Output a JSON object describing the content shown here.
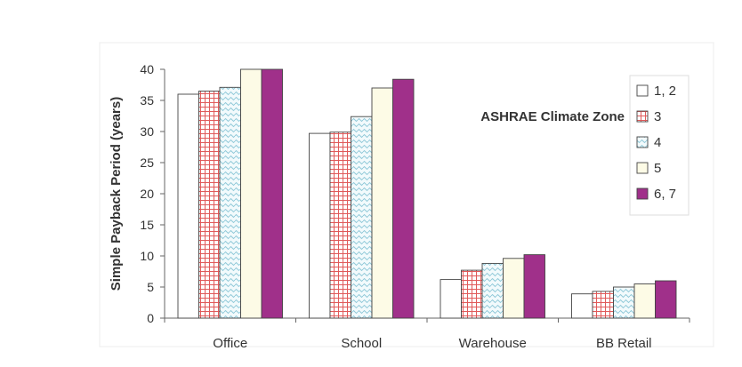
{
  "chart_data": {
    "type": "bar",
    "categories": [
      "Office",
      "School",
      "Warehouse",
      "BB Retail"
    ],
    "ylabel": "Simple Payback Period (years)",
    "xlabel": "",
    "ylim": [
      0,
      40
    ],
    "yticks": [
      0,
      5,
      10,
      15,
      20,
      25,
      30,
      35,
      40
    ],
    "grid": false,
    "legend_title": "ASHRAE Climate Zone",
    "legend_position": "right",
    "series": [
      {
        "name": "1, 2",
        "values": [
          36.0,
          29.7,
          6.2,
          3.9
        ],
        "color": "#ffffff",
        "pattern": "solid"
      },
      {
        "name": "3",
        "values": [
          36.5,
          29.9,
          7.7,
          4.3
        ],
        "color": "#e05a5a",
        "pattern": "grid"
      },
      {
        "name": "4",
        "values": [
          37.1,
          32.4,
          8.8,
          5.0
        ],
        "color": "#8ec8d8",
        "pattern": "wave"
      },
      {
        "name": "5",
        "values": [
          40.0,
          37.0,
          9.6,
          5.5
        ],
        "color": "#fdfbe6",
        "pattern": "cream"
      },
      {
        "name": "6, 7",
        "values": [
          40.0,
          38.4,
          10.2,
          6.0
        ],
        "color": "#a0308a",
        "pattern": "solid"
      }
    ]
  }
}
